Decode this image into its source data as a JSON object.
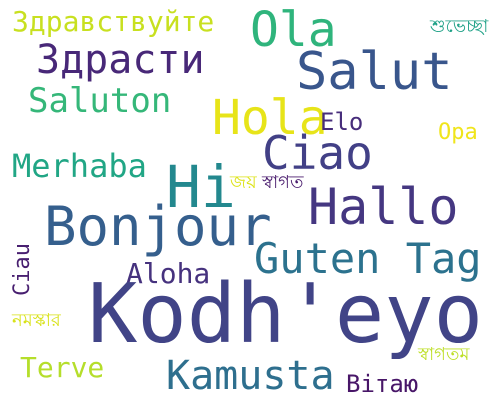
{
  "words": [
    {
      "text": "Здравствуйте",
      "color": "#c8e020"
    },
    {
      "text": "Ola",
      "color": "#2fb47c"
    },
    {
      "text": "শুভেচ্ছা",
      "color": "#1fa187"
    },
    {
      "text": "Здрасти",
      "color": "#482878"
    },
    {
      "text": "Salut",
      "color": "#39568c"
    },
    {
      "text": "Saluton",
      "color": "#35b779"
    },
    {
      "text": "Hola",
      "color": "#e7e419"
    },
    {
      "text": "Elo",
      "color": "#472d7b"
    },
    {
      "text": "Opa",
      "color": "#f0e51c"
    },
    {
      "text": "Ciao",
      "color": "#424086"
    },
    {
      "text": "Merhaba",
      "color": "#21a685"
    },
    {
      "text": "Hi",
      "color": "#23888e"
    },
    {
      "text": "জয়",
      "color": "#dde318"
    },
    {
      "text": "স্বাগত",
      "color": "#481a6c"
    },
    {
      "text": "Hallo",
      "color": "#453781"
    },
    {
      "text": "Bonjour",
      "color": "#355f8d"
    },
    {
      "text": "Guten Tag",
      "color": "#2c728e"
    },
    {
      "text": "Aloha",
      "color": "#46327e"
    },
    {
      "text": "Ciau",
      "color": "#481f70"
    },
    {
      "text": "Kodh'eyo",
      "color": "#414487"
    },
    {
      "text": "নমস্কার",
      "color": "#d8e219"
    },
    {
      "text": "স্বাগতম",
      "color": "#bddf26"
    },
    {
      "text": "Terve",
      "color": "#b5de2b"
    },
    {
      "text": "Kamusta",
      "color": "#2e6f8e"
    },
    {
      "text": "Вітаю",
      "color": "#481668"
    }
  ]
}
